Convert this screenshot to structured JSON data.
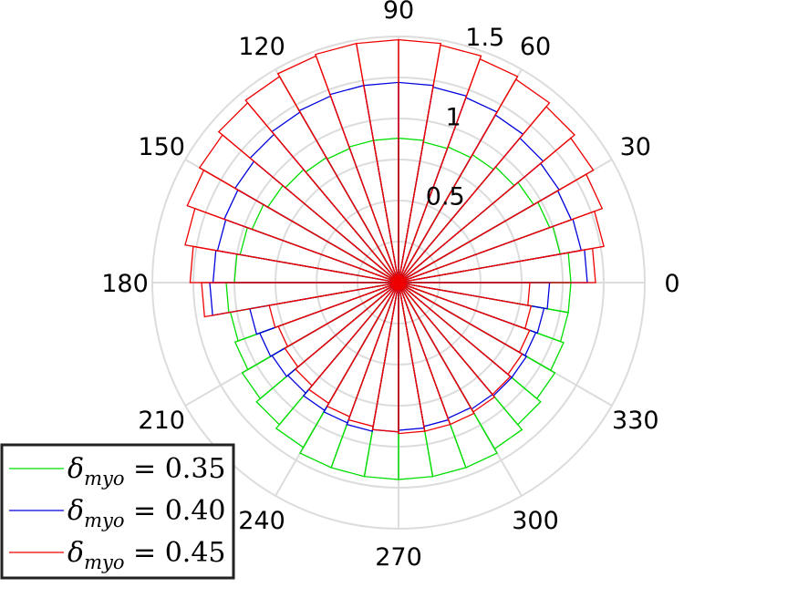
{
  "chart_data": {
    "type": "polar-histogram",
    "theta_ticks": [
      "0",
      "30",
      "60",
      "90",
      "120",
      "150",
      "180",
      "210",
      "240",
      "270",
      "300",
      "330"
    ],
    "r_ticks": [
      "0.5",
      "1",
      "1.5"
    ],
    "rlim": [
      0,
      1.5
    ],
    "grid": true,
    "legend_position": "bottom-left",
    "bin_width_deg": 10,
    "series": [
      {
        "name": "δ_myo = 0.35",
        "label_main": "δ",
        "label_sub": "myo",
        "label_rest": " = 0.35",
        "color": "#00dd00",
        "values": [
          1.05,
          1.0,
          0.98,
          0.95,
          0.92,
          0.9,
          0.88,
          0.87,
          0.88,
          0.88,
          0.88,
          0.87,
          0.88,
          0.9,
          0.92,
          0.95,
          0.98,
          1.0,
          1.05,
          1.04,
          1.06,
          1.1,
          1.13,
          1.16,
          1.2,
          1.2,
          1.2,
          1.2,
          1.2,
          1.2,
          1.17,
          1.13,
          1.1,
          1.07,
          1.05,
          1.05
        ]
      },
      {
        "name": "δ_myo = 0.40",
        "label_main": "δ",
        "label_sub": "myo",
        "label_rest": " = 0.40",
        "color": "#0000dd",
        "values": [
          1.15,
          1.13,
          1.12,
          1.13,
          1.15,
          1.18,
          1.2,
          1.21,
          1.22,
          1.22,
          1.22,
          1.21,
          1.2,
          1.18,
          1.15,
          1.13,
          1.12,
          1.13,
          1.15,
          0.92,
          0.9,
          0.89,
          0.88,
          0.9,
          0.91,
          0.92,
          0.91,
          0.9,
          0.89,
          0.88,
          0.89,
          0.9,
          0.9,
          0.89,
          0.9,
          0.92
        ]
      },
      {
        "name": "δ_myo = 0.45",
        "label_main": "δ",
        "label_sub": "myo",
        "label_rest": " = 0.45",
        "color": "#ee0000",
        "values": [
          1.2,
          1.27,
          1.32,
          1.37,
          1.4,
          1.43,
          1.45,
          1.47,
          1.48,
          1.48,
          1.48,
          1.47,
          1.45,
          1.43,
          1.4,
          1.37,
          1.32,
          1.27,
          1.2,
          0.8,
          0.78,
          0.8,
          0.82,
          0.85,
          0.87,
          0.89,
          0.91,
          0.92,
          0.92,
          0.92,
          0.91,
          0.89,
          0.87,
          0.85,
          0.82,
          0.8
        ]
      }
    ]
  }
}
